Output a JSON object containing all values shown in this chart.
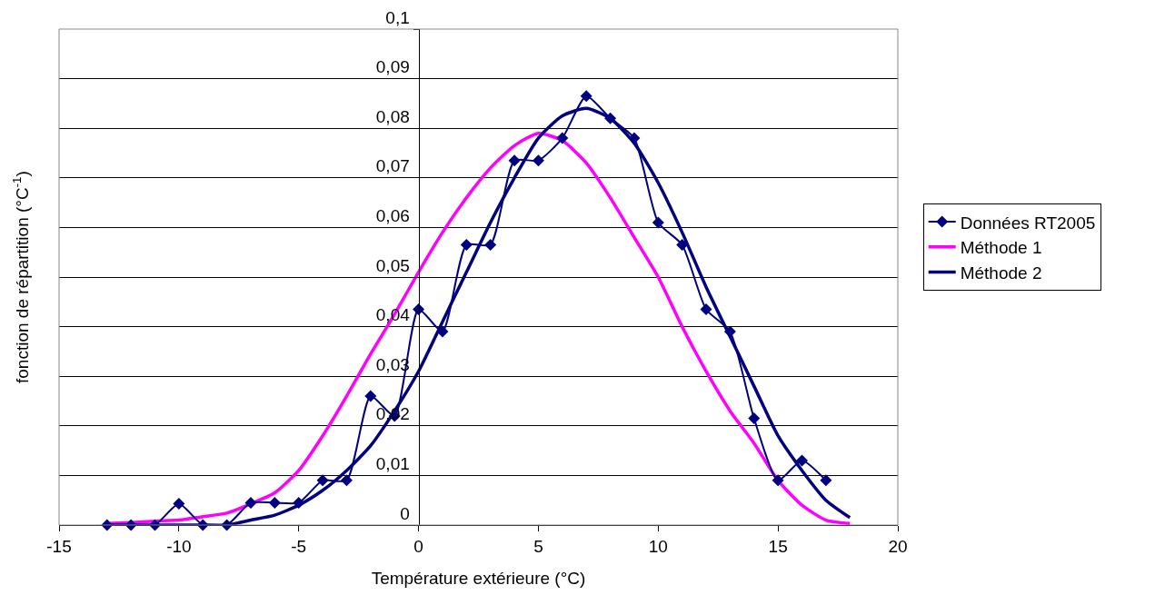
{
  "chart_data": {
    "type": "line",
    "xlabel": "Température extérieure (°C)",
    "ylabel": "fonction de répartition (°C$^{-1}$)",
    "xlim": [
      -15,
      20
    ],
    "xticks": [
      -15,
      -10,
      -5,
      0,
      5,
      10,
      15,
      20
    ],
    "ylim": [
      0,
      0.1
    ],
    "yticks": [
      {
        "value": 0,
        "label": "0"
      },
      {
        "value": 0.01,
        "label": "0,01"
      },
      {
        "value": 0.02,
        "label": "0,02"
      },
      {
        "value": 0.03,
        "label": "0,03"
      },
      {
        "value": 0.04,
        "label": "0,04"
      },
      {
        "value": 0.05,
        "label": "0,05"
      },
      {
        "value": 0.06,
        "label": "0,06"
      },
      {
        "value": 0.07,
        "label": "0,07"
      },
      {
        "value": 0.08,
        "label": "0,08"
      },
      {
        "value": 0.09,
        "label": "0,09"
      },
      {
        "value": 0.1,
        "label": "0,1"
      }
    ],
    "grid": "y",
    "legend": "right",
    "line_style": "solid",
    "series": [
      {
        "name": "Données RT2005",
        "color": "#000080",
        "marker": "diamond",
        "x": [
          -13,
          -12,
          -11,
          -10,
          -9,
          -8,
          -7,
          -6,
          -5,
          -4,
          -3,
          -2,
          -1,
          0,
          1,
          2,
          3,
          4,
          5,
          6,
          7,
          8,
          9,
          10,
          11,
          12,
          13,
          14,
          15,
          16,
          17
        ],
        "values": [
          0,
          0,
          0,
          0.0043,
          0,
          0,
          0.0045,
          0.0045,
          0.0045,
          0.009,
          0.009,
          0.026,
          0.022,
          0.0435,
          0.039,
          0.0565,
          0.0565,
          0.0735,
          0.0735,
          0.078,
          0.0865,
          0.082,
          0.078,
          0.061,
          0.0565,
          0.0435,
          0.039,
          0.0215,
          0.009,
          0.013,
          0.009
        ]
      },
      {
        "name": "Méthode 1",
        "color": "#ff00ff",
        "marker": "none",
        "x": [
          -13,
          -12,
          -11,
          -10,
          -9,
          -8,
          -7,
          -6,
          -5,
          -4,
          -3,
          -2,
          -1,
          0,
          1,
          2,
          3,
          4,
          5,
          6,
          7,
          8,
          9,
          10,
          11,
          12,
          13,
          14,
          15,
          16,
          17,
          18
        ],
        "values": [
          0.0003,
          0.0005,
          0.0008,
          0.001,
          0.0017,
          0.0024,
          0.0043,
          0.0065,
          0.011,
          0.018,
          0.026,
          0.0345,
          0.0425,
          0.051,
          0.059,
          0.066,
          0.072,
          0.0765,
          0.079,
          0.0775,
          0.073,
          0.066,
          0.058,
          0.05,
          0.04,
          0.031,
          0.023,
          0.0165,
          0.009,
          0.004,
          0.001,
          0.0003
        ]
      },
      {
        "name": "Méthode 2",
        "color": "#000080",
        "marker": "none",
        "x": [
          -13,
          -12,
          -11,
          -10,
          -9,
          -8,
          -7,
          -6,
          -5,
          -4,
          -3,
          -2,
          -1,
          0,
          1,
          2,
          3,
          4,
          5,
          6,
          7,
          8,
          9,
          10,
          11,
          12,
          13,
          14,
          15,
          16,
          17,
          18
        ],
        "values": [
          0,
          0,
          0,
          0,
          0,
          0,
          0.001,
          0.002,
          0.004,
          0.007,
          0.011,
          0.016,
          0.023,
          0.031,
          0.041,
          0.051,
          0.061,
          0.07,
          0.078,
          0.0825,
          0.084,
          0.082,
          0.077,
          0.069,
          0.059,
          0.048,
          0.038,
          0.028,
          0.018,
          0.011,
          0.005,
          0.0015
        ]
      }
    ]
  }
}
